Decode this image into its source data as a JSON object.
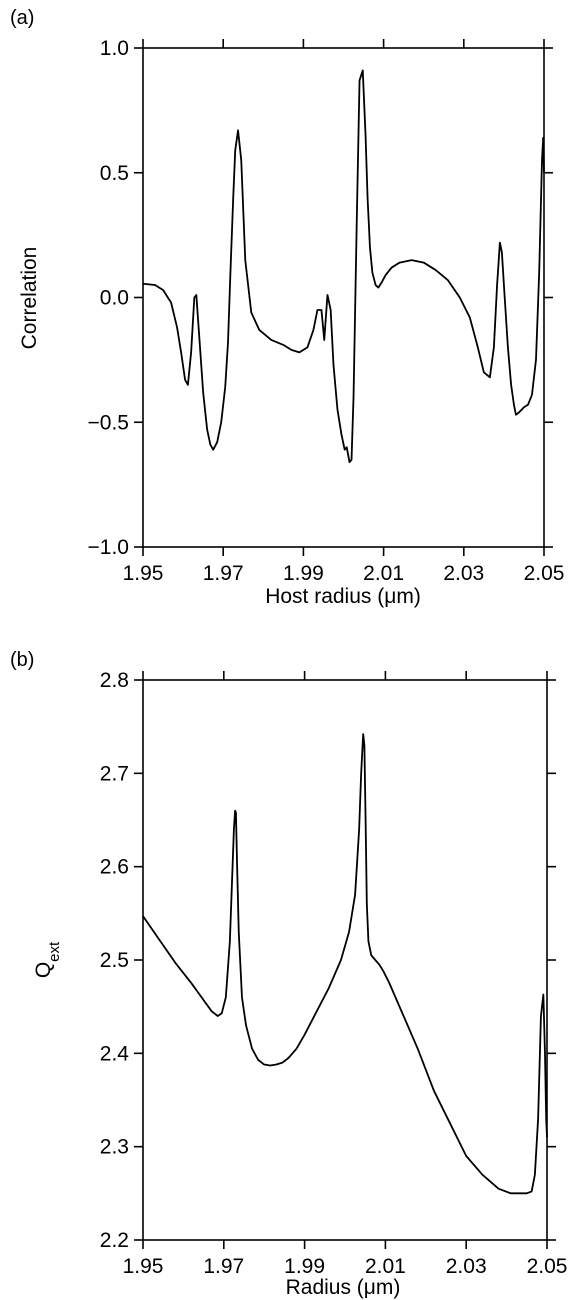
{
  "chart_data": [
    {
      "type": "line",
      "panel_label": "(a)",
      "xlabel": "Host radius (μm)",
      "ylabel": "Correlation",
      "xlim": [
        1.95,
        2.05
      ],
      "ylim": [
        -1.0,
        1.0
      ],
      "x_ticks": [
        1.95,
        1.97,
        1.99,
        2.01,
        2.03,
        2.05
      ],
      "x_tick_labels": [
        "1.95",
        "1.97",
        "1.99",
        "2.01",
        "2.03",
        "2.05"
      ],
      "y_ticks": [
        -1.0,
        -0.5,
        0.0,
        0.5,
        1.0
      ],
      "y_tick_labels": [
        "−1.0",
        "−0.5",
        "0.0",
        "0.5",
        "1.0"
      ],
      "grid": false,
      "series": [
        {
          "x": [
            1.95,
            1.953,
            1.955,
            1.957,
            1.9585,
            1.9595,
            1.9605,
            1.9612,
            1.962,
            1.9628,
            1.9633,
            1.964,
            1.965,
            1.966,
            1.9668,
            1.9675,
            1.9685,
            1.9695,
            1.9705,
            1.9712,
            1.9718,
            1.9725,
            1.973,
            1.9737,
            1.9745,
            1.9755,
            1.977,
            1.979,
            1.982,
            1.985,
            1.987,
            1.989,
            1.991,
            1.9925,
            1.9935,
            1.9945,
            1.9952,
            1.996,
            1.9968,
            1.9975,
            1.9985,
            1.9995,
            2.0003,
            2.0008,
            2.0015,
            2.002,
            2.0025,
            2.0033,
            2.004,
            2.0048,
            2.0055,
            2.006,
            2.0066,
            2.0072,
            2.008,
            2.0087,
            2.0095,
            2.0105,
            2.012,
            2.014,
            2.017,
            2.02,
            2.023,
            2.026,
            2.029,
            2.0315,
            2.0335,
            2.035,
            2.0365,
            2.0375,
            2.0383,
            2.039,
            2.0395,
            2.0402,
            2.041,
            2.0418,
            2.0425,
            2.043,
            2.0438,
            2.045,
            2.046,
            2.047,
            2.048,
            2.0488,
            2.0495,
            2.0498,
            2.05
          ],
          "y": [
            0.055,
            0.05,
            0.03,
            -0.02,
            -0.12,
            -0.22,
            -0.33,
            -0.35,
            -0.22,
            0.0,
            0.01,
            -0.15,
            -0.38,
            -0.53,
            -0.59,
            -0.61,
            -0.58,
            -0.5,
            -0.36,
            -0.18,
            0.1,
            0.4,
            0.59,
            0.67,
            0.55,
            0.15,
            -0.06,
            -0.13,
            -0.17,
            -0.19,
            -0.21,
            -0.22,
            -0.2,
            -0.13,
            -0.05,
            -0.05,
            -0.17,
            0.01,
            -0.05,
            -0.27,
            -0.45,
            -0.55,
            -0.61,
            -0.6,
            -0.66,
            -0.65,
            -0.4,
            0.3,
            0.87,
            0.91,
            0.65,
            0.4,
            0.2,
            0.1,
            0.05,
            0.04,
            0.06,
            0.09,
            0.12,
            0.14,
            0.15,
            0.14,
            0.11,
            0.07,
            0.0,
            -0.08,
            -0.2,
            -0.3,
            -0.32,
            -0.2,
            0.05,
            0.22,
            0.18,
            0.0,
            -0.2,
            -0.35,
            -0.43,
            -0.47,
            -0.46,
            -0.44,
            -0.43,
            -0.39,
            -0.25,
            0.1,
            0.55,
            0.64,
            0.5
          ]
        }
      ]
    },
    {
      "type": "line",
      "panel_label": "(b)",
      "xlabel": "Radius (μm)",
      "ylabel_main": "Q",
      "ylabel_sub": "ext",
      "xlim": [
        1.95,
        2.05
      ],
      "ylim": [
        2.2,
        2.8
      ],
      "x_ticks": [
        1.95,
        1.97,
        1.99,
        2.01,
        2.03,
        2.05
      ],
      "x_tick_labels": [
        "1.95",
        "1.97",
        "1.99",
        "2.01",
        "2.03",
        "2.05"
      ],
      "y_ticks": [
        2.2,
        2.3,
        2.4,
        2.5,
        2.6,
        2.7,
        2.8
      ],
      "y_tick_labels": [
        "2.2",
        "2.3",
        "2.4",
        "2.5",
        "2.6",
        "2.7",
        "2.8"
      ],
      "grid": false,
      "series": [
        {
          "x": [
            1.95,
            1.954,
            1.958,
            1.962,
            1.965,
            1.967,
            1.9685,
            1.9695,
            1.9705,
            1.9715,
            1.972,
            1.9725,
            1.9728,
            1.973,
            1.9733,
            1.9737,
            1.9745,
            1.9755,
            1.977,
            1.9785,
            1.98,
            1.9815,
            1.983,
            1.9845,
            1.986,
            1.988,
            1.99,
            1.993,
            1.996,
            1.999,
            2.001,
            2.0025,
            2.0035,
            2.004,
            2.0045,
            2.0048,
            2.0051,
            2.0054,
            2.0058,
            2.0065,
            2.0075,
            2.0085,
            2.0095,
            2.011,
            2.014,
            2.018,
            2.022,
            2.026,
            2.03,
            2.034,
            2.038,
            2.041,
            2.043,
            2.045,
            2.0462,
            2.047,
            2.0478,
            2.0485,
            2.0491,
            2.0495,
            2.0498,
            2.05
          ],
          "y": [
            2.547,
            2.522,
            2.497,
            2.475,
            2.457,
            2.445,
            2.44,
            2.443,
            2.46,
            2.52,
            2.58,
            2.64,
            2.66,
            2.658,
            2.6,
            2.53,
            2.46,
            2.43,
            2.405,
            2.393,
            2.388,
            2.387,
            2.388,
            2.39,
            2.395,
            2.405,
            2.42,
            2.445,
            2.47,
            2.5,
            2.53,
            2.57,
            2.64,
            2.7,
            2.742,
            2.73,
            2.65,
            2.56,
            2.52,
            2.505,
            2.5,
            2.495,
            2.488,
            2.475,
            2.445,
            2.405,
            2.36,
            2.325,
            2.29,
            2.27,
            2.255,
            2.25,
            2.25,
            2.25,
            2.252,
            2.27,
            2.33,
            2.44,
            2.463,
            2.4,
            2.33,
            2.31
          ]
        }
      ]
    }
  ]
}
